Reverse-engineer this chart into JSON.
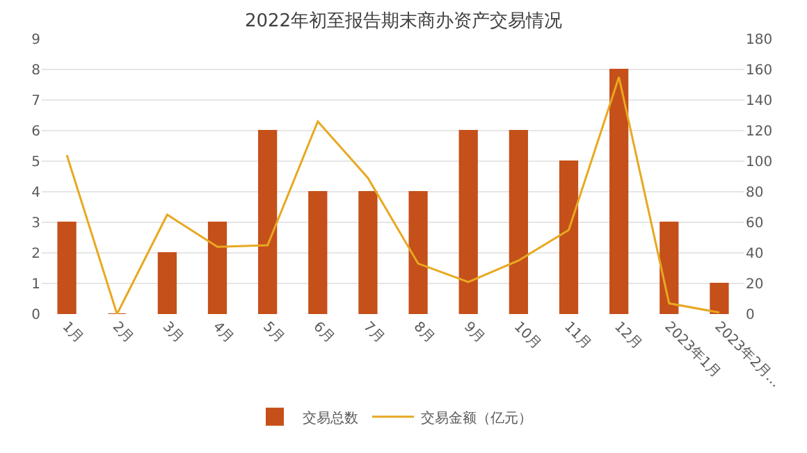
{
  "chart_data": {
    "type": "bar",
    "title": "2022年初至报告期末商办资产交易情况",
    "categories": [
      "1月",
      "2月",
      "3月",
      "4月",
      "5月",
      "6月",
      "7月",
      "8月",
      "9月",
      "10月",
      "11月",
      "12月",
      "2023年1月",
      "2023年2月…"
    ],
    "series": [
      {
        "name": "交易总数",
        "color": "#c5501a",
        "values": [
          3,
          0,
          2,
          3,
          6,
          4,
          4,
          4,
          6,
          6,
          5,
          8,
          3,
          1
        ]
      },
      {
        "name": "交易金额（亿元）",
        "type": "line",
        "axis": "y2",
        "color": "#e8a820",
        "values": [
          104,
          0,
          65,
          44,
          45,
          126,
          89,
          33,
          21,
          35,
          55,
          155,
          7,
          1
        ]
      }
    ],
    "ylim": [
      0,
      9
    ],
    "yticks": [
      0,
      1,
      2,
      3,
      4,
      5,
      6,
      7,
      8,
      9
    ],
    "y2lim": [
      0,
      180
    ],
    "y2ticks": [
      0,
      20,
      40,
      60,
      80,
      100,
      120,
      140,
      160,
      180
    ],
    "grid": "y",
    "legend": "bottom",
    "marker": "none",
    "line_style": "solid"
  }
}
